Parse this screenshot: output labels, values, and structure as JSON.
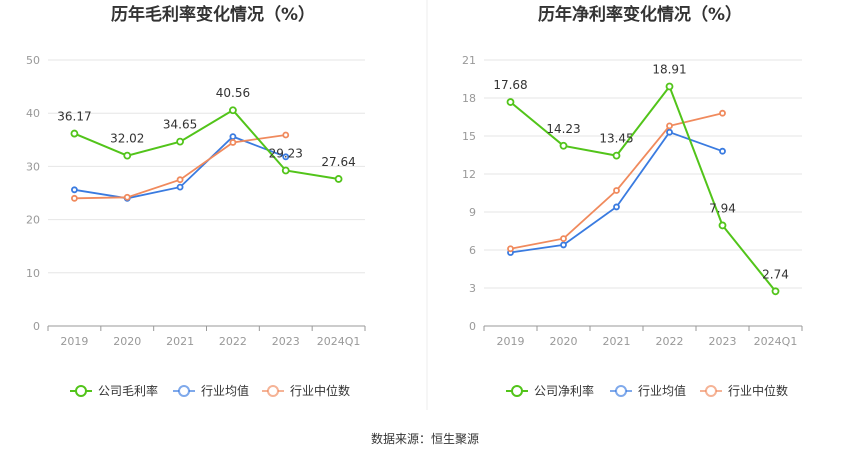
{
  "chart_data": [
    {
      "type": "line",
      "title": "历年毛利率变化情况（%）",
      "categories": [
        "2019",
        "2020",
        "2021",
        "2022",
        "2023",
        "2024Q1"
      ],
      "ylim": [
        0,
        50
      ],
      "yticks": [
        0,
        10,
        20,
        30,
        40,
        50
      ],
      "grid": true,
      "legend_position": "bottom",
      "series": [
        {
          "name": "公司毛利率",
          "color": "#52c41a",
          "values": [
            36.17,
            32.02,
            34.65,
            40.56,
            29.23,
            27.64
          ],
          "labels": [
            "36.17",
            "32.02",
            "34.65",
            "40.56",
            "29.23",
            "27.64"
          ]
        },
        {
          "name": "行业均值",
          "color": "#3a7be0",
          "values": [
            25.6,
            24.0,
            26.1,
            35.6,
            31.8,
            null
          ]
        },
        {
          "name": "行业中位数",
          "color": "#f08a5d",
          "values": [
            24.0,
            24.2,
            27.5,
            34.5,
            35.9,
            null
          ]
        }
      ]
    },
    {
      "type": "line",
      "title": "历年净利率变化情况（%）",
      "categories": [
        "2019",
        "2020",
        "2021",
        "2022",
        "2023",
        "2024Q1"
      ],
      "ylim": [
        0,
        21
      ],
      "yticks": [
        0,
        3,
        6,
        9,
        12,
        15,
        18,
        21
      ],
      "grid": true,
      "legend_position": "bottom",
      "series": [
        {
          "name": "公司净利率",
          "color": "#52c41a",
          "values": [
            17.68,
            14.23,
            13.45,
            18.91,
            7.94,
            2.74
          ],
          "labels": [
            "17.68",
            "14.23",
            "13.45",
            "18.91",
            "7.94",
            "2.74"
          ]
        },
        {
          "name": "行业均值",
          "color": "#3a7be0",
          "values": [
            5.8,
            6.4,
            9.4,
            15.3,
            13.8,
            null
          ]
        },
        {
          "name": "行业中位数",
          "color": "#f08a5d",
          "values": [
            6.1,
            6.9,
            10.7,
            15.8,
            16.8,
            null
          ]
        }
      ]
    }
  ],
  "footer": {
    "source": "数据来源：恒生聚源"
  }
}
